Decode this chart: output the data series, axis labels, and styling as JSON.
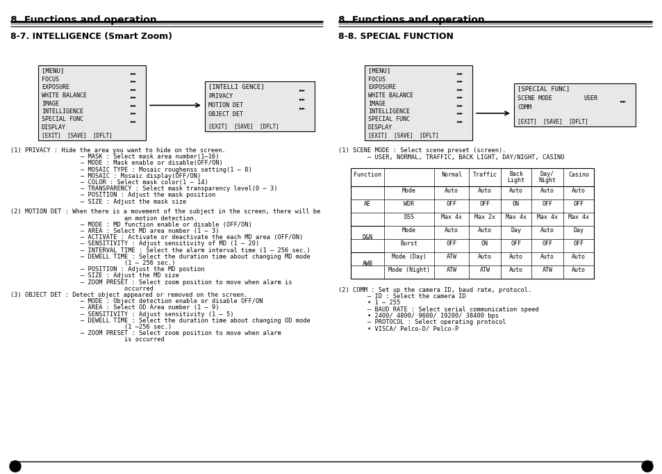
{
  "bg_color": "#ffffff",
  "page_width": 9.54,
  "page_height": 6.82,
  "left_header": "8. Functions and operation",
  "left_subheader": "8-7. INTELLIGENCE (Smart Zoom)",
  "right_header": "8. Functions and operation",
  "right_subheader": "8-8. SPECIAL FUNCTION",
  "menu_items": [
    "FOCUS",
    "EXPOSURE",
    "WHITE BALANCE",
    "IMAGE",
    "INTELLIGENCE",
    "SPECIAL FUNC",
    "DISPLAY"
  ],
  "intel_box_title": "[INTELLI GENCE]",
  "intel_items": [
    "PRIVACY",
    "MOTION DET",
    "OBJECT DET"
  ],
  "intel_arrows": [
    "PRIVACY",
    "MOTION DET",
    "OBJECT DET"
  ],
  "special_box_title": "[SPECIAL FUNC]",
  "special_items": [
    "SCENE MODE",
    "USER",
    "COMM"
  ],
  "left_body": [
    [
      "(1) PRIVACY : Hide the area you want to hide on the screen.",
      0
    ],
    [
      "    – MASK : Select mask area number(1–16)",
      1
    ],
    [
      "    – MODE : Mask enable or disable(OFF/ON)",
      1
    ],
    [
      "    – MOSAIC TYPE : Mosaic roughenss setting(1 — 8)",
      1
    ],
    [
      "    – MOSAIC : Mosaic display(OFF/ON)",
      1
    ],
    [
      "    – COLOR : Select mask color(1 — 14)",
      1
    ],
    [
      "    – TRANSPARENCY : Select mask transparency level(0 — 3)",
      1
    ],
    [
      "    – POSITION : Adjust the mask position",
      1
    ],
    [
      "    – SIZE : Adjust the mask size",
      1
    ],
    [
      "",
      0
    ],
    [
      "(2) MOTION DET : When there is a movement of the subject in the screen, there will be",
      0
    ],
    [
      "                an motion detection.",
      1
    ],
    [
      "    – MODE : MD function enable or disable (OFF/ON)",
      1
    ],
    [
      "    – AREA : Select MD area number (1 — 3)",
      1
    ],
    [
      "    – ACTIVATE : Activate or deactivate the each MD area (OFF/ON)",
      1
    ],
    [
      "    – SENSITIVITY : Adjust sensitivity of MD (1 — 20)",
      1
    ],
    [
      "    – INTERVAL TIME : Select the alarm interval time (1 — 256 sec.)",
      1
    ],
    [
      "    – DEWELL TIME : Select the duration time about changing MD mode",
      1
    ],
    [
      "                (1 — 256 sec.)",
      1
    ],
    [
      "    – POSITION : Adjust the MD postion",
      1
    ],
    [
      "    – SIZE : Adjust the MD size",
      1
    ],
    [
      "    – ZOOM PRESET : Select zoom position to move when alarm is",
      1
    ],
    [
      "                occurred",
      1
    ],
    [
      "(3) OBJECT DET : Detect object appeared or removed on the screen.",
      0
    ],
    [
      "    – MODE : Object detection enable or disable OFF/ON",
      1
    ],
    [
      "    – AREA : Select OD Area number (1 — 9)",
      1
    ],
    [
      "    – SENSITIVITY : Adjust sensitivity (1 — 5)",
      1
    ],
    [
      "    – DEWELL TIME : Select the duration time about changing OD mode",
      1
    ],
    [
      "                (1 —256 sec.)",
      1
    ],
    [
      "    – ZOOM PRESET : Select zoom position to move when alarm",
      1
    ],
    [
      "                is occurred",
      1
    ]
  ],
  "scene_lines": [
    "(1) SCENE MODE : Select scene preset (screen).",
    "        – USER, NORMAL, TRAFFIC, BACK LIGHT, DAY/NIGHT, CASINO"
  ],
  "table_rows": [
    [
      "AE",
      "Mode",
      "Auto",
      "Auto",
      "Auto",
      "Auto",
      "Auto"
    ],
    [
      "AE",
      "WDR",
      "OFF",
      "OFF",
      "ON",
      "OFF",
      "OFF"
    ],
    [
      "AE",
      "DSS",
      "Max 4x",
      "Max 2x",
      "Max 4x",
      "Max 4x",
      "Max 4x"
    ],
    [
      "D&N",
      "Mode",
      "Auto",
      "Auto",
      "Day",
      "Auto",
      "Day"
    ],
    [
      "D&N",
      "Burst",
      "OFF",
      "ON",
      "OFF",
      "OFF",
      "OFF"
    ],
    [
      "AWB",
      "Mode (Day)",
      "ATW",
      "Auto",
      "Auto",
      "Auto",
      "Auto"
    ],
    [
      "AWB",
      "Mode (Night)",
      "ATW",
      "ATW",
      "Auto",
      "ATW",
      "Auto"
    ]
  ],
  "comm_lines": [
    "(2) COMM : Set up the camera ID, baud rate, protocol.",
    "        – ID : Select the camera ID",
    "        • 1 — 255",
    "        – BAUD RATE : Select serial communication speed",
    "        • 2400/ 4800/ 9600/ 19200/ 38400 bps",
    "        – PROTOCOL : Select operating protocol",
    "        • VISCA/ Pelco-D/ Pelco-P"
  ]
}
